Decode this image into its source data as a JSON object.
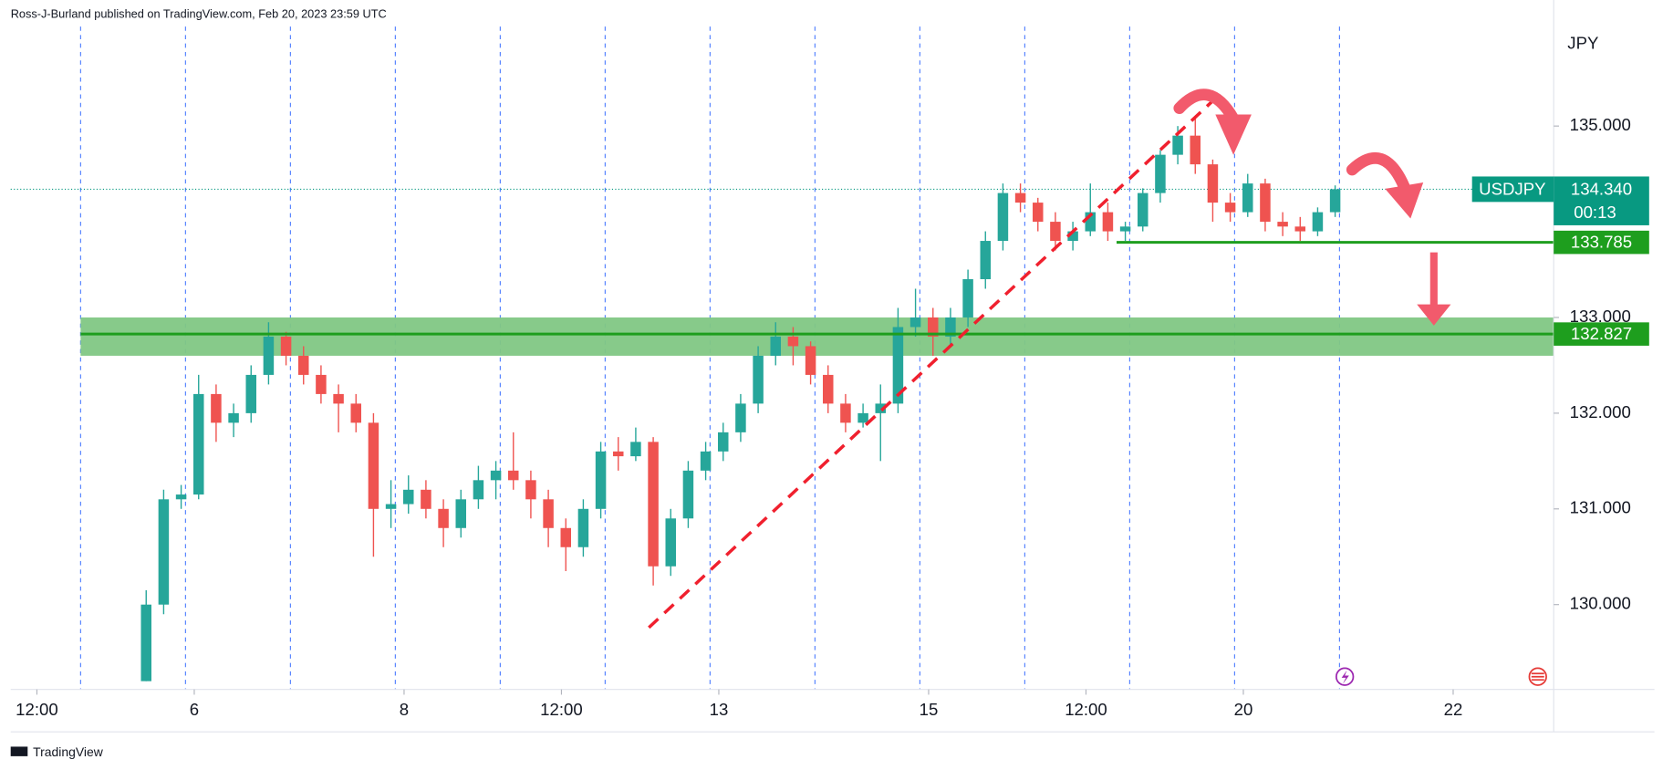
{
  "chart_data": {
    "type": "candlestick",
    "title": "Ross-J-Burland published on TradingView.com, Feb 20, 2023 23:59 UTC",
    "y_unit": "JPY",
    "symbol": "USDJPY",
    "countdown": "00:13",
    "last_price": {
      "value": 134.34,
      "label": "134.340"
    },
    "up_color": "#26a69a",
    "down_color": "#ef5350",
    "xlim": [
      0,
      353
    ],
    "ylim": [
      129.114,
      136.04
    ],
    "xticks": [
      {
        "value": 6,
        "label": "12:00"
      },
      {
        "value": 42,
        "label": "6"
      },
      {
        "value": 90,
        "label": "8"
      },
      {
        "value": 126,
        "label": "12:00"
      },
      {
        "value": 162,
        "label": "13"
      },
      {
        "value": 210,
        "label": "15"
      },
      {
        "value": 246,
        "label": "12:00"
      },
      {
        "value": 282,
        "label": "20"
      },
      {
        "value": 330,
        "label": "22"
      }
    ],
    "yticks": [
      {
        "value": 130,
        "label": "130.000"
      },
      {
        "value": 131,
        "label": "131.000"
      },
      {
        "value": 132,
        "label": "132.000"
      },
      {
        "value": 133,
        "label": "133.000"
      },
      {
        "value": 135,
        "label": "135.000"
      }
    ],
    "session_lines": [
      16,
      40,
      64,
      88,
      112,
      136,
      160,
      184,
      208,
      232,
      256,
      280,
      304
    ],
    "x": [
      31,
      35,
      39,
      43,
      47,
      51,
      55,
      59,
      63,
      67,
      71,
      75,
      79,
      83,
      87,
      91,
      95,
      99,
      103,
      107,
      111,
      115,
      119,
      123,
      127,
      131,
      135,
      139,
      143,
      147,
      151,
      155,
      159,
      163,
      167,
      171,
      175,
      179,
      183,
      187,
      191,
      195,
      199,
      203,
      207,
      211,
      215,
      219,
      223,
      227,
      231,
      235,
      239,
      243,
      247,
      251,
      255,
      259,
      263,
      267,
      271,
      275,
      279,
      283,
      287,
      291,
      295,
      299,
      303
    ],
    "candles": [
      [
        129.2,
        130.15,
        129.2,
        130.0
      ],
      [
        130.0,
        131.2,
        129.9,
        131.1
      ],
      [
        131.1,
        131.25,
        131.0,
        131.15
      ],
      [
        131.15,
        132.4,
        131.1,
        132.2
      ],
      [
        132.2,
        132.3,
        131.7,
        131.9
      ],
      [
        131.9,
        132.1,
        131.75,
        132.0
      ],
      [
        132.0,
        132.5,
        131.9,
        132.4
      ],
      [
        132.4,
        132.95,
        132.3,
        132.8
      ],
      [
        132.8,
        132.85,
        132.5,
        132.6
      ],
      [
        132.6,
        132.7,
        132.3,
        132.4
      ],
      [
        132.4,
        132.5,
        132.1,
        132.2
      ],
      [
        132.2,
        132.3,
        131.8,
        132.1
      ],
      [
        132.1,
        132.2,
        131.8,
        131.9
      ],
      [
        131.9,
        132.0,
        130.5,
        131.0
      ],
      [
        131.0,
        131.3,
        130.8,
        131.05
      ],
      [
        131.05,
        131.35,
        130.95,
        131.2
      ],
      [
        131.2,
        131.3,
        130.9,
        131.0
      ],
      [
        131.0,
        131.1,
        130.6,
        130.8
      ],
      [
        130.8,
        131.2,
        130.7,
        131.1
      ],
      [
        131.1,
        131.45,
        131.0,
        131.3
      ],
      [
        131.3,
        131.5,
        131.1,
        131.4
      ],
      [
        131.4,
        131.8,
        131.2,
        131.3
      ],
      [
        131.3,
        131.4,
        130.9,
        131.1
      ],
      [
        131.1,
        131.2,
        130.6,
        130.8
      ],
      [
        130.8,
        130.9,
        130.35,
        130.6
      ],
      [
        130.6,
        131.1,
        130.5,
        131.0
      ],
      [
        131.0,
        131.7,
        130.9,
        131.6
      ],
      [
        131.6,
        131.75,
        131.4,
        131.55
      ],
      [
        131.55,
        131.85,
        131.5,
        131.7
      ],
      [
        131.7,
        131.75,
        130.2,
        130.4
      ],
      [
        130.4,
        131.0,
        130.3,
        130.9
      ],
      [
        130.9,
        131.5,
        130.8,
        131.4
      ],
      [
        131.4,
        131.7,
        131.3,
        131.6
      ],
      [
        131.6,
        131.9,
        131.5,
        131.8
      ],
      [
        131.8,
        132.2,
        131.7,
        132.1
      ],
      [
        132.1,
        132.7,
        132.0,
        132.6
      ],
      [
        132.6,
        132.95,
        132.5,
        132.8
      ],
      [
        132.8,
        132.9,
        132.5,
        132.7
      ],
      [
        132.7,
        132.75,
        132.3,
        132.4
      ],
      [
        132.4,
        132.5,
        132.0,
        132.1
      ],
      [
        132.1,
        132.2,
        131.8,
        131.9
      ],
      [
        131.9,
        132.1,
        131.85,
        132.0
      ],
      [
        132.0,
        132.3,
        131.5,
        132.1
      ],
      [
        132.1,
        133.1,
        132.0,
        132.9
      ],
      [
        132.9,
        133.3,
        132.8,
        133.0
      ],
      [
        133.0,
        133.1,
        132.6,
        132.8
      ],
      [
        132.8,
        133.1,
        132.7,
        133.0
      ],
      [
        133.0,
        133.5,
        132.9,
        133.4
      ],
      [
        133.4,
        133.9,
        133.3,
        133.8
      ],
      [
        133.8,
        134.4,
        133.7,
        134.3
      ],
      [
        134.3,
        134.4,
        134.1,
        134.2
      ],
      [
        134.2,
        134.25,
        133.9,
        134.0
      ],
      [
        134.0,
        134.1,
        133.7,
        133.8
      ],
      [
        133.8,
        134.0,
        133.7,
        133.9
      ],
      [
        133.9,
        134.4,
        133.85,
        134.1
      ],
      [
        134.1,
        134.2,
        133.8,
        133.9
      ],
      [
        133.9,
        134.0,
        133.8,
        133.95
      ],
      [
        133.95,
        134.35,
        133.9,
        134.3
      ],
      [
        134.3,
        134.75,
        134.2,
        134.7
      ],
      [
        134.7,
        135.0,
        134.6,
        134.9
      ],
      [
        134.9,
        135.1,
        134.5,
        134.6
      ],
      [
        134.6,
        134.65,
        134.0,
        134.2
      ],
      [
        134.2,
        134.3,
        134.0,
        134.1
      ],
      [
        134.1,
        134.5,
        134.05,
        134.4
      ],
      [
        134.4,
        134.45,
        133.9,
        134.0
      ],
      [
        134.0,
        134.1,
        133.85,
        133.95
      ],
      [
        133.95,
        134.05,
        133.8,
        133.9
      ],
      [
        133.9,
        134.15,
        133.85,
        134.1
      ],
      [
        134.1,
        134.38,
        134.05,
        134.34
      ]
    ],
    "zone": {
      "from": 16,
      "low": 132.6,
      "high": 133.0,
      "color": "#81c784"
    },
    "levels": [
      {
        "value": 133.785,
        "from": 253,
        "color": "#1e9e1e"
      },
      {
        "value": 132.827,
        "from": 16,
        "color": "#1e9e1e"
      }
    ],
    "trendline": {
      "x": [
        146,
        274.7
      ],
      "y": [
        129.76,
        135.25
      ],
      "color": "#f0202e"
    },
    "watermark": "TradingView"
  }
}
